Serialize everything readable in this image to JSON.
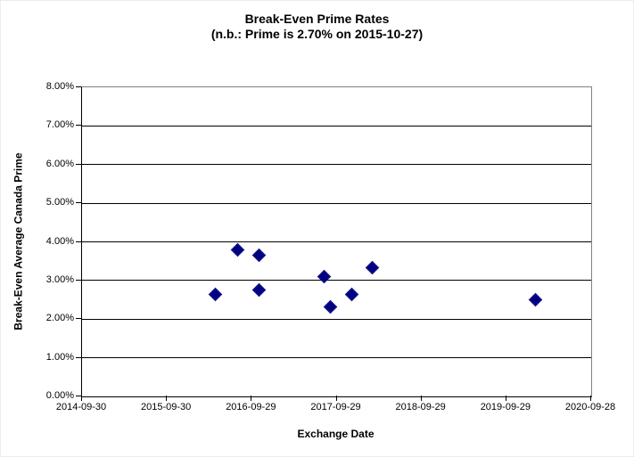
{
  "title": "Break-Even Prime Rates",
  "subtitle": "(n.b.: Prime is 2.70% on 2015-10-27)",
  "colors": {
    "marker": "#000080",
    "gridline": "#000000",
    "axis_line": "#000000",
    "plot_border": "#808080",
    "background": "#ffffff"
  },
  "chart_data": {
    "type": "scatter",
    "title": "Break-Even Prime Rates",
    "subtitle": "(n.b.: Prime is 2.70% on 2015-10-27)",
    "xlabel": "Exchange Date",
    "ylabel": "Break-Even Average Canada Prime",
    "legend": "none",
    "grid": "horizontal",
    "x_axis": {
      "min": "2014-09-30",
      "max": "2020-09-28",
      "tick_labels": [
        "2014-09-30",
        "2015-09-30",
        "2016-09-29",
        "2017-09-29",
        "2018-09-29",
        "2019-09-29",
        "2020-09-28"
      ]
    },
    "y_axis": {
      "min": 0,
      "max": 8,
      "tick_step": 1,
      "tick_labels": [
        "0.00%",
        "1.00%",
        "2.00%",
        "3.00%",
        "4.00%",
        "5.00%",
        "6.00%",
        "7.00%",
        "8.00%"
      ],
      "unit": "percent"
    },
    "series": [
      {
        "name": "Break-Even Average Canada Prime",
        "marker": "diamond",
        "color": "#000080",
        "points": [
          {
            "x": "2016-04-27",
            "y": 2.65
          },
          {
            "x": "2016-08-01",
            "y": 3.8
          },
          {
            "x": "2016-10-29",
            "y": 3.65
          },
          {
            "x": "2016-10-29",
            "y": 2.76
          },
          {
            "x": "2017-08-05",
            "y": 3.11
          },
          {
            "x": "2017-09-01",
            "y": 2.32
          },
          {
            "x": "2017-12-02",
            "y": 2.63
          },
          {
            "x": "2018-02-28",
            "y": 3.34
          },
          {
            "x": "2020-02-03",
            "y": 2.49
          }
        ]
      }
    ]
  }
}
